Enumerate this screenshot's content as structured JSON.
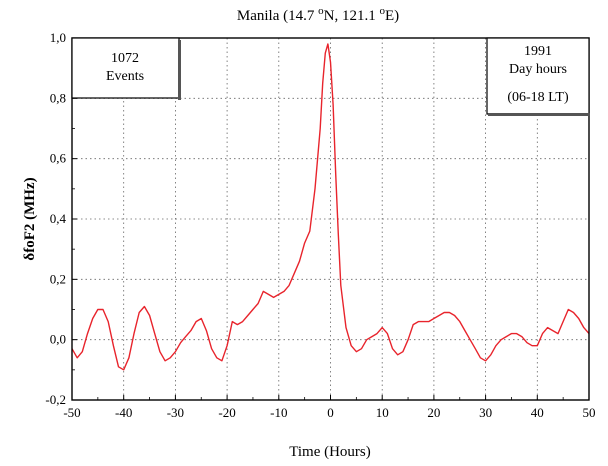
{
  "chart_data": {
    "type": "line",
    "title_prefix": "Manila (14.7 ",
    "title_mid": "N, 121.1 ",
    "title_suffix": "E)",
    "degree_sup": "o",
    "xlabel": "Time (Hours)",
    "ylabel": "δfoF2 (MHz)",
    "xlim": [
      -50,
      50
    ],
    "ylim": [
      -0.2,
      1.0
    ],
    "x_ticks": [
      "-50",
      "-40",
      "-30",
      "-20",
      "-10",
      "0",
      "10",
      "20",
      "30",
      "40",
      "50"
    ],
    "y_ticks": [
      "-0,2",
      "0,0",
      "0,2",
      "0,4",
      "0,6",
      "0,8",
      "1,0"
    ],
    "grid": true,
    "line_color": "#e8242c",
    "annotations": {
      "left": [
        "1072",
        "Events"
      ],
      "right": [
        "1991",
        "Day hours",
        "(06-18 LT)"
      ]
    },
    "series": [
      {
        "x": [
          -50,
          -49,
          -48,
          -47,
          -46,
          -45,
          -44,
          -43,
          -42,
          -41,
          -40,
          -39,
          -38,
          -37,
          -36,
          -35,
          -34,
          -33,
          -32,
          -31,
          -30,
          -29,
          -28,
          -27,
          -26,
          -25,
          -24,
          -23,
          -22,
          -21,
          -20,
          -19,
          -18,
          -17,
          -16,
          -15,
          -14,
          -13,
          -12,
          -11,
          -10,
          -9,
          -8,
          -7,
          -6,
          -5,
          -4,
          -3,
          -2,
          -1.5,
          -1,
          -0.5,
          0,
          0.5,
          1,
          1.5,
          2,
          3,
          4,
          5,
          6,
          7,
          8,
          9,
          10,
          11,
          12,
          13,
          14,
          15,
          16,
          17,
          18,
          19,
          20,
          21,
          22,
          23,
          24,
          25,
          26,
          27,
          28,
          29,
          30,
          31,
          32,
          33,
          34,
          35,
          36,
          37,
          38,
          39,
          40,
          41,
          42,
          43,
          44,
          45,
          46,
          47,
          48,
          49,
          50
        ],
        "y": [
          -0.03,
          -0.06,
          -0.04,
          0.02,
          0.07,
          0.1,
          0.1,
          0.06,
          -0.02,
          -0.09,
          -0.1,
          -0.06,
          0.02,
          0.09,
          0.11,
          0.08,
          0.02,
          -0.04,
          -0.07,
          -0.06,
          -0.04,
          -0.01,
          0.01,
          0.03,
          0.06,
          0.07,
          0.03,
          -0.03,
          -0.06,
          -0.07,
          -0.02,
          0.06,
          0.05,
          0.06,
          0.08,
          0.1,
          0.12,
          0.16,
          0.15,
          0.14,
          0.15,
          0.16,
          0.18,
          0.22,
          0.26,
          0.32,
          0.36,
          0.5,
          0.7,
          0.85,
          0.95,
          0.98,
          0.92,
          0.78,
          0.55,
          0.35,
          0.18,
          0.04,
          -0.02,
          -0.04,
          -0.03,
          0.0,
          0.01,
          0.02,
          0.04,
          0.02,
          -0.03,
          -0.05,
          -0.04,
          0.0,
          0.05,
          0.06,
          0.06,
          0.06,
          0.07,
          0.08,
          0.09,
          0.09,
          0.08,
          0.06,
          0.03,
          0.0,
          -0.03,
          -0.06,
          -0.07,
          -0.05,
          -0.02,
          0.0,
          0.01,
          0.02,
          0.02,
          0.01,
          -0.01,
          -0.02,
          -0.02,
          0.02,
          0.04,
          0.03,
          0.02,
          0.06,
          0.1,
          0.09,
          0.07,
          0.04,
          0.02
        ]
      }
    ]
  }
}
